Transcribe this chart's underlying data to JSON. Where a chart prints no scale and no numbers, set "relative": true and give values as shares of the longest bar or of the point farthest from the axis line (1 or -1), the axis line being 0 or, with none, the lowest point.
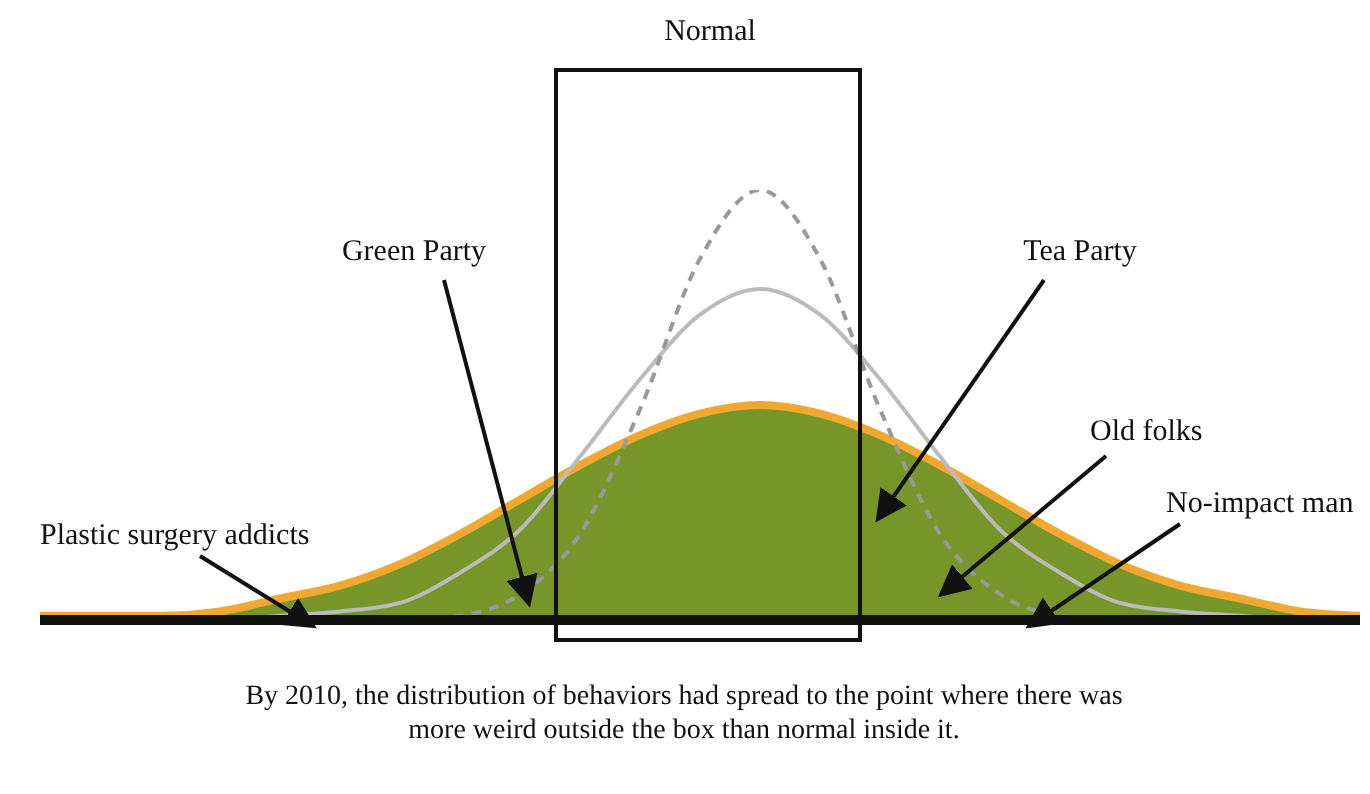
{
  "chart_data": {
    "type": "area",
    "relative": true,
    "categories": [
      null,
      null,
      null,
      null,
      null,
      null,
      null,
      null,
      null,
      null,
      null,
      null,
      null,
      null,
      null,
      null,
      null,
      null,
      null,
      null,
      null,
      null,
      null
    ],
    "series": [
      {
        "color": "#76962a",
        "values": [
          0.01,
          0.01,
          0.01,
          0.02,
          0.05,
          0.08,
          0.13,
          0.2,
          0.28,
          0.36,
          0.43,
          0.48,
          0.5,
          0.48,
          0.43,
          0.36,
          0.28,
          0.2,
          0.13,
          0.08,
          0.05,
          0.02,
          0.01
        ]
      },
      {
        "type": "line",
        "color": "#bbbbbb",
        "line_style": "solid",
        "values": [
          0,
          0,
          0,
          0,
          0.01,
          0.02,
          0.04,
          0.11,
          0.21,
          0.38,
          0.56,
          0.71,
          0.77,
          0.71,
          0.56,
          0.38,
          0.21,
          0.11,
          0.04,
          0.02,
          0.01,
          0,
          0
        ]
      },
      {
        "type": "line",
        "color": "#999999",
        "line_style": "dashed",
        "values": [
          0,
          0,
          0,
          0,
          0,
          0,
          0,
          0.01,
          0.06,
          0.2,
          0.49,
          0.84,
          1,
          0.84,
          0.49,
          0.2,
          0.06,
          0.01,
          0,
          0,
          0,
          0,
          0
        ]
      }
    ],
    "annotations": [
      "Normal",
      "Green Party",
      "Tea Party",
      "Plastic surgery addicts",
      "Old folks",
      "No-impact man",
      "By 2010, the distribution of behaviors had spread to the point where there was more weird outside the box than normal inside it."
    ]
  }
}
